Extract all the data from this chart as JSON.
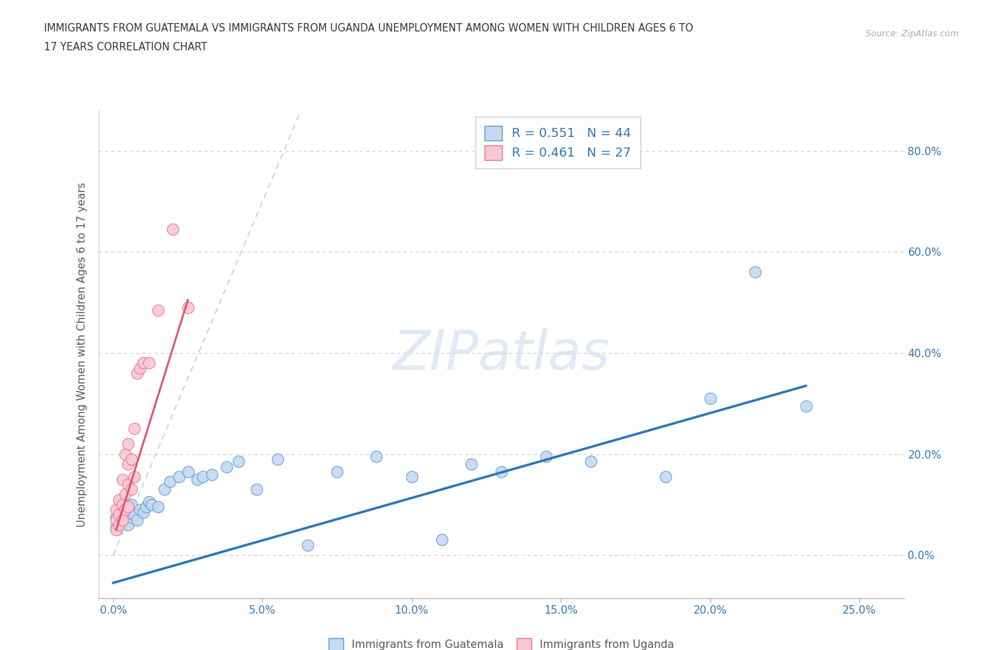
{
  "title_line1": "IMMIGRANTS FROM GUATEMALA VS IMMIGRANTS FROM UGANDA UNEMPLOYMENT AMONG WOMEN WITH CHILDREN AGES 6 TO",
  "title_line2": "17 YEARS CORRELATION CHART",
  "source": "Source: ZipAtlas.com",
  "ylabel": "Unemployment Among Women with Children Ages 6 to 17 years",
  "legend_label1": "Immigrants from Guatemala",
  "legend_label2": "Immigrants from Uganda",
  "r1": 0.551,
  "n1": 44,
  "r2": 0.461,
  "n2": 27,
  "color_blue_fill": "#c5d9f0",
  "color_pink_fill": "#f9c8d4",
  "color_blue_edge": "#5b9bd5",
  "color_pink_edge": "#e8748a",
  "color_blue_line": "#2e75b6",
  "color_pink_line": "#e05070",
  "color_blue_text": "#2e75b6",
  "color_axis_text": "#2e75b6",
  "xlim": [
    -0.005,
    0.265
  ],
  "ylim": [
    -0.085,
    0.88
  ],
  "xticks": [
    0.0,
    0.05,
    0.1,
    0.15,
    0.2,
    0.25
  ],
  "yticks": [
    0.0,
    0.2,
    0.4,
    0.6,
    0.8
  ],
  "guat_x": [
    0.001,
    0.001,
    0.002,
    0.002,
    0.003,
    0.003,
    0.004,
    0.004,
    0.005,
    0.005,
    0.006,
    0.006,
    0.007,
    0.008,
    0.009,
    0.01,
    0.011,
    0.012,
    0.013,
    0.015,
    0.017,
    0.019,
    0.022,
    0.025,
    0.028,
    0.03,
    0.033,
    0.038,
    0.042,
    0.048,
    0.055,
    0.065,
    0.075,
    0.088,
    0.1,
    0.11,
    0.12,
    0.13,
    0.145,
    0.16,
    0.185,
    0.2,
    0.215,
    0.232
  ],
  "guat_y": [
    0.055,
    0.075,
    0.065,
    0.085,
    0.07,
    0.09,
    0.065,
    0.08,
    0.06,
    0.095,
    0.075,
    0.1,
    0.08,
    0.07,
    0.09,
    0.085,
    0.095,
    0.105,
    0.1,
    0.095,
    0.13,
    0.145,
    0.155,
    0.165,
    0.15,
    0.155,
    0.16,
    0.175,
    0.185,
    0.13,
    0.19,
    0.02,
    0.165,
    0.195,
    0.155,
    0.03,
    0.18,
    0.165,
    0.195,
    0.185,
    0.155,
    0.31,
    0.56,
    0.295
  ],
  "ugand_x": [
    0.001,
    0.001,
    0.001,
    0.002,
    0.002,
    0.002,
    0.003,
    0.003,
    0.003,
    0.004,
    0.004,
    0.004,
    0.005,
    0.005,
    0.005,
    0.005,
    0.006,
    0.006,
    0.007,
    0.007,
    0.008,
    0.009,
    0.01,
    0.012,
    0.015,
    0.02,
    0.025
  ],
  "ugand_y": [
    0.05,
    0.07,
    0.09,
    0.06,
    0.08,
    0.11,
    0.07,
    0.1,
    0.15,
    0.09,
    0.12,
    0.2,
    0.095,
    0.14,
    0.18,
    0.22,
    0.13,
    0.19,
    0.155,
    0.25,
    0.36,
    0.37,
    0.38,
    0.38,
    0.485,
    0.645,
    0.49
  ],
  "diag_slope": 14.0,
  "blue_line_x": [
    0.0,
    0.232
  ],
  "blue_line_y": [
    -0.055,
    0.335
  ],
  "pink_line_x": [
    0.001,
    0.025
  ],
  "pink_line_y": [
    0.05,
    0.505
  ]
}
